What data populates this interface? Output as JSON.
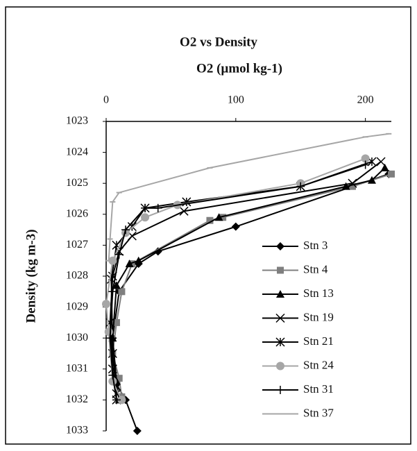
{
  "chart_data": {
    "type": "line",
    "title": "O2 vs Density",
    "x_label": "O2 (µmol kg-1)",
    "y_label": "Density (kg m-3)",
    "xlim": [
      0,
      220
    ],
    "xticks": [
      0,
      100,
      200
    ],
    "ylim": [
      1023,
      1033
    ],
    "yticks": [
      1023,
      1024,
      1025,
      1026,
      1027,
      1028,
      1029,
      1030,
      1031,
      1032,
      1033
    ],
    "y_inverted": true,
    "x_axis_position": "top",
    "legend_position": "right",
    "series": [
      {
        "name": "Stn 3",
        "color": "#000000",
        "marker": "diamond",
        "x": [
          218,
          100,
          40,
          25,
          10,
          5,
          8,
          15,
          24
        ],
        "values": [
          1024.7,
          1026.4,
          1027.2,
          1027.6,
          1028.5,
          1030,
          1031.5,
          1032,
          1033
        ]
      },
      {
        "name": "Stn 4",
        "color": "#7f7f7f",
        "marker": "square",
        "x": [
          220,
          190,
          90,
          80,
          20,
          12,
          8,
          5,
          10,
          12
        ],
        "values": [
          1024.7,
          1025.1,
          1026.1,
          1026.2,
          1027.6,
          1028.5,
          1029.5,
          1030.5,
          1031.3,
          1031.9
        ]
      },
      {
        "name": "Stn 13",
        "color": "#000000",
        "marker": "triangle",
        "x": [
          215,
          205,
          185,
          87,
          25,
          18,
          8,
          5,
          8,
          10
        ],
        "values": [
          1024.5,
          1024.9,
          1025.1,
          1026.1,
          1027.5,
          1027.6,
          1028.3,
          1030,
          1031.4,
          1032
        ]
      },
      {
        "name": "Stn 19",
        "color": "#000000",
        "marker": "x",
        "x": [
          212,
          190,
          60,
          20,
          10,
          5,
          3,
          5,
          8
        ],
        "values": [
          1024.3,
          1025,
          1025.9,
          1026.7,
          1027.2,
          1028,
          1029.5,
          1031,
          1032
        ]
      },
      {
        "name": "Stn 21",
        "color": "#000000",
        "marker": "star",
        "x": [
          205,
          150,
          62,
          30,
          20,
          8,
          4,
          5,
          8
        ],
        "values": [
          1024.3,
          1025.1,
          1025.6,
          1025.8,
          1026.4,
          1027,
          1028.1,
          1030.5,
          1031.8
        ]
      },
      {
        "name": "Stn 24",
        "color": "#a6a6a6",
        "marker": "circle",
        "x": [
          200,
          150,
          55,
          30,
          15,
          5,
          0,
          2,
          5,
          12
        ],
        "values": [
          1024.2,
          1025,
          1025.7,
          1026.1,
          1026.6,
          1027.5,
          1028.9,
          1029.8,
          1031.4,
          1032
        ]
      },
      {
        "name": "Stn 31",
        "color": "#000000",
        "marker": "plus",
        "x": [
          200,
          150,
          40,
          30,
          15,
          10,
          5,
          3,
          5,
          8
        ],
        "values": [
          1024.4,
          1025.1,
          1025.8,
          1025.8,
          1026.5,
          1027.3,
          1028.5,
          1030,
          1031.2,
          1032
        ]
      },
      {
        "name": "Stn 37",
        "color": "#a6a6a6",
        "marker": "dash",
        "x": [
          218,
          200,
          80,
          10,
          5,
          3,
          2
        ],
        "values": [
          1023.4,
          1023.5,
          1024.5,
          1025.3,
          1025.6,
          1026.8,
          1027.5
        ]
      }
    ]
  }
}
